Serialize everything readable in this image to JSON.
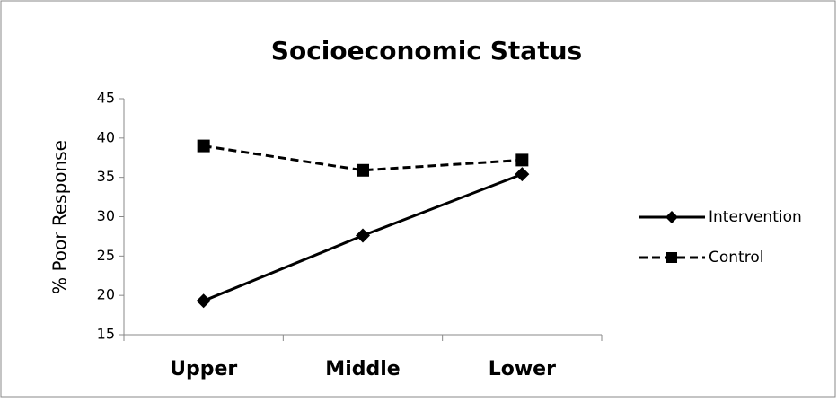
{
  "chart_data": {
    "type": "line",
    "title": "Socioeconomic Status",
    "y_label": "% Poor Response",
    "categories": [
      "Upper",
      "Middle",
      "Lower"
    ],
    "series": [
      {
        "name": "Intervention",
        "color": "#000000",
        "line_style": "solid",
        "marker": "diamond",
        "values": [
          19.3,
          27.6,
          35.4
        ]
      },
      {
        "name": "Control",
        "color": "#000000",
        "line_style": "dashed",
        "marker": "square",
        "values": [
          39.0,
          35.9,
          37.2
        ]
      }
    ],
    "ylim": [
      15,
      45
    ],
    "yticks": [
      15,
      20,
      25,
      30,
      35,
      40,
      45
    ],
    "grid": false,
    "legend": "right"
  }
}
